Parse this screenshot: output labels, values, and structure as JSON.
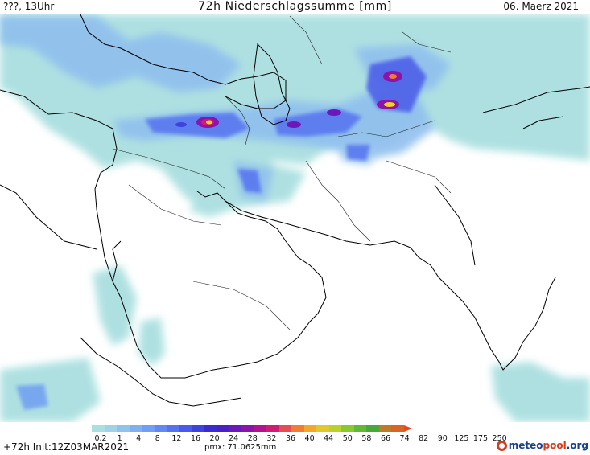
{
  "header": {
    "left": "???, 13Uhr",
    "title": "72h Niederschlagssumme [mm]",
    "right": "06. Maerz 2021"
  },
  "legend": {
    "ticks": [
      "0.2",
      "1",
      "4",
      "8",
      "12",
      "16",
      "20",
      "24",
      "28",
      "32",
      "36",
      "40",
      "44",
      "50",
      "58",
      "66",
      "74",
      "82",
      "90",
      "125",
      "175",
      "250"
    ],
    "colors": [
      "#aadfe0",
      "#9fd2e8",
      "#8fc2ec",
      "#7fb0ef",
      "#6f9ef2",
      "#6288f2",
      "#5572f0",
      "#4a5ae8",
      "#3f42dd",
      "#3a2ad0",
      "#4a1fc4",
      "#6a18b8",
      "#8d14a8",
      "#b0148e",
      "#d01c73",
      "#e64d52",
      "#f07d34",
      "#f1a82b",
      "#dfc82a",
      "#b8d12b",
      "#8ac832",
      "#61b834",
      "#4aa83a",
      "#c07a2a",
      "#d56625",
      "#e8471f"
    ]
  },
  "footer": {
    "left": "+72h Init:12Z03MAR2021",
    "mid": "pmx: 71.0625mm",
    "logo_a": "meteo",
    "logo_b": "pool",
    "logo_c": ".org"
  },
  "map_colors": {
    "light": "#aadfe0",
    "mid": "#8fbfee",
    "blue": "#5572f0",
    "deep": "#3f42dd",
    "purple": "#8d14a8",
    "magenta": "#d01c73",
    "yellow": "#f1d22b"
  }
}
